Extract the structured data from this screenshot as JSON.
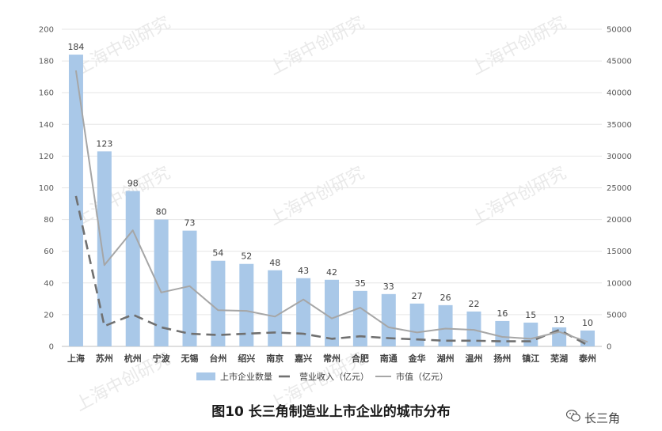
{
  "chart_data": {
    "type": "bar",
    "title": "图10 长三角制造业上市企业的城市分布",
    "categories": [
      "上海",
      "苏州",
      "杭州",
      "宁波",
      "无锡",
      "台州",
      "绍兴",
      "南京",
      "嘉兴",
      "常州",
      "合肥",
      "南通",
      "金华",
      "湖州",
      "温州",
      "扬州",
      "镇江",
      "芜湖",
      "泰州"
    ],
    "series": [
      {
        "name": "上市企业数量",
        "kind": "bar",
        "axis": "left",
        "color": "#a9c8e8",
        "values": [
          184,
          123,
          98,
          80,
          73,
          54,
          52,
          48,
          43,
          42,
          35,
          33,
          27,
          26,
          22,
          16,
          15,
          12,
          10
        ]
      },
      {
        "name": "营业收入（亿元）",
        "kind": "line",
        "axis": "right",
        "color": "#707070",
        "dash": true,
        "values": [
          23700,
          3200,
          5000,
          3000,
          2000,
          1800,
          2000,
          2200,
          2000,
          1200,
          1600,
          1300,
          1100,
          900,
          900,
          800,
          800,
          2600,
          200
        ]
      },
      {
        "name": "市值（亿元）",
        "kind": "line",
        "axis": "right",
        "color": "#a6a6a6",
        "dash": false,
        "values": [
          43500,
          12800,
          18300,
          8500,
          9500,
          5700,
          5600,
          4700,
          7400,
          4400,
          6100,
          3000,
          2200,
          2800,
          2600,
          1500,
          1200,
          2300,
          700
        ]
      }
    ],
    "y_left": {
      "min": 0,
      "max": 200,
      "ticks": [
        0,
        20,
        40,
        60,
        80,
        100,
        120,
        140,
        160,
        180,
        200
      ]
    },
    "y_right": {
      "min": 0,
      "max": 50000,
      "ticks": [
        0,
        5000,
        10000,
        15000,
        20000,
        25000,
        30000,
        35000,
        40000,
        45000,
        50000
      ]
    },
    "legend_position": "bottom",
    "grid": true
  },
  "watermark": "上海中创研究",
  "brand": "长三角"
}
